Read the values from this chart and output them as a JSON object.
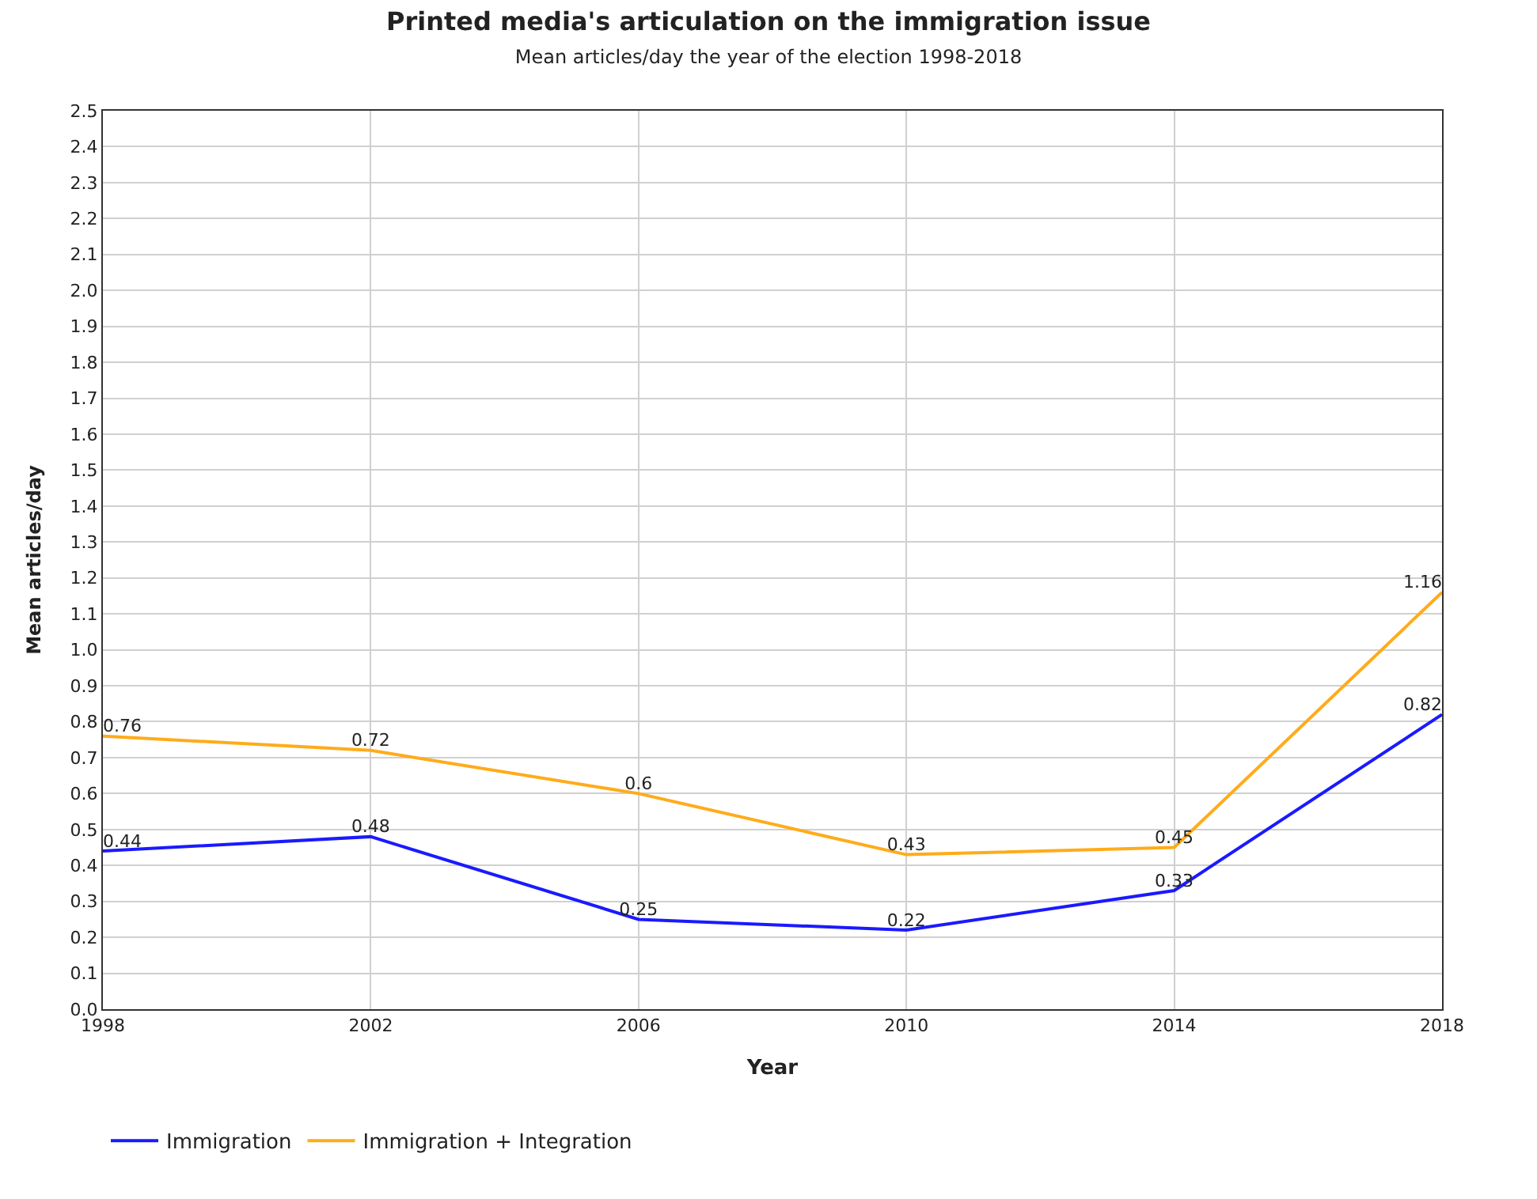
{
  "chart_data": {
    "type": "line",
    "title": "Printed media's articulation on the immigration issue",
    "subtitle": "Mean articles/day the year of the election 1998-2018",
    "xlabel": "Year",
    "ylabel": "Mean articles/day",
    "x": [
      1998,
      2002,
      2006,
      2010,
      2014,
      2018
    ],
    "series": [
      {
        "name": "Immigration",
        "color": "#1a1aff",
        "values": [
          0.44,
          0.48,
          0.25,
          0.22,
          0.33,
          0.82
        ]
      },
      {
        "name": "Immigration + Integration",
        "color": "#ffab1a",
        "values": [
          0.76,
          0.72,
          0.6,
          0.43,
          0.45,
          1.16
        ]
      }
    ],
    "xlim": [
      1998,
      2018
    ],
    "xticks": [
      1998,
      2002,
      2006,
      2010,
      2014,
      2018
    ],
    "ylim": [
      0,
      2.5
    ],
    "yticks": [
      {
        "value": 0,
        "label": "0.0"
      },
      0.1,
      0.2,
      0.3,
      0.4,
      0.5,
      0.6,
      0.7,
      0.8,
      0.9,
      {
        "value": 1,
        "label": "1.0"
      },
      1.1,
      1.2,
      1.3,
      1.4,
      1.5,
      1.6,
      1.7,
      1.8,
      1.9,
      {
        "value": 2,
        "label": "2.0"
      },
      2.1,
      2.2,
      2.3,
      2.4,
      2.5
    ],
    "grid": true,
    "legend": "bottom left",
    "data_labels": true,
    "marker": "none",
    "line_style": "solid"
  }
}
